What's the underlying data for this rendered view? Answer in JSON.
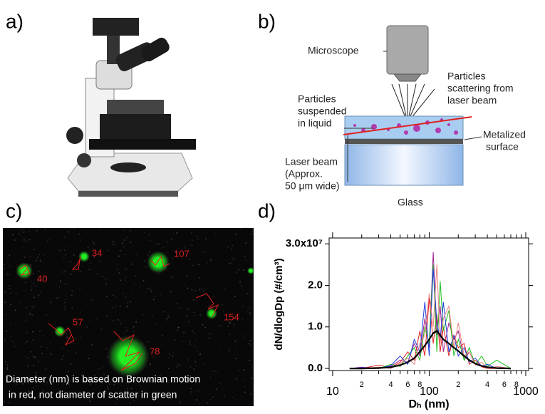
{
  "panels": {
    "a": "a)",
    "b": "b)",
    "c": "c)",
    "d": "d)"
  },
  "diagram": {
    "microscope": "Microscope",
    "scattering": [
      "Particles",
      "scattering from",
      "laser beam"
    ],
    "suspended": [
      "Particles",
      "suspended",
      "in liquid"
    ],
    "metal": [
      "Metalized",
      "surface"
    ],
    "laser": [
      "Laser beam",
      "(Approx.",
      "50 μm wide)"
    ],
    "glass": "Glass"
  },
  "image": {
    "labels": [
      "34",
      "107",
      "40",
      "154",
      "57",
      "78"
    ],
    "caption": [
      "Diameter (nm) is based on Brownian motion",
      " in red, not diameter of scatter in green"
    ]
  },
  "chart_data": {
    "type": "line",
    "xlabel": "Dₕ (nm)",
    "ylabel": "dN/dlogDp (#/cm³)",
    "log_x": true,
    "xlim": [
      9.2,
      1070
    ],
    "ylim": [
      -500000,
      31400000
    ],
    "xticks": [
      10,
      {
        "value": 20,
        "label": "2"
      },
      {
        "value": 40,
        "label": "4"
      },
      {
        "value": 60,
        "label": "6"
      },
      {
        "value": 80,
        "label": "8"
      },
      100,
      {
        "value": 200,
        "label": "2"
      },
      {
        "value": 400,
        "label": "4"
      },
      {
        "value": 600,
        "label": "6"
      },
      {
        "value": 800,
        "label": "8"
      },
      1000
    ],
    "xminorticks": [
      30,
      50,
      70,
      90,
      300,
      500,
      700,
      900
    ],
    "yticks": [
      {
        "value": 0,
        "label": "0.0"
      },
      {
        "value": 10000000,
        "label": "1.0"
      },
      {
        "value": 20000000,
        "label": "2.0"
      },
      {
        "value": 30000000,
        "label": "3.0x10⁷"
      }
    ],
    "x": [
      15,
      20,
      30,
      40,
      50,
      60,
      70,
      80,
      90,
      100,
      110,
      120,
      130,
      140,
      160,
      180,
      200,
      230,
      260,
      300,
      350,
      400,
      500,
      700
    ],
    "series": [
      {
        "color": "#a0208e",
        "values": [
          0,
          300000,
          0,
          500000,
          2000000,
          1500000,
          6000000,
          3000000,
          12000000,
          5000000,
          28000000,
          8000000,
          15000000,
          4000000,
          11000000,
          7000000,
          9000000,
          2000000,
          4000000,
          1000000,
          500000,
          1000000,
          0,
          0
        ]
      },
      {
        "color": "#e02020",
        "values": [
          0,
          0,
          800000,
          200000,
          1500000,
          4000000,
          2000000,
          9000000,
          3000000,
          17000000,
          6000000,
          13000000,
          4000000,
          10000000,
          3000000,
          8000000,
          5000000,
          6000000,
          1000000,
          2000000,
          400000,
          0,
          0,
          0
        ]
      },
      {
        "color": "#20c020",
        "values": [
          0,
          0,
          0,
          1000000,
          500000,
          3000000,
          5000000,
          2000000,
          10000000,
          6000000,
          25000000,
          4000000,
          21000000,
          9000000,
          14000000,
          3000000,
          7000000,
          2000000,
          5000000,
          1000000,
          3000000,
          500000,
          2000000,
          0
        ]
      },
      {
        "color": "#2040e0",
        "values": [
          0,
          200000,
          0,
          700000,
          3000000,
          1000000,
          7000000,
          4000000,
          16000000,
          3000000,
          24000000,
          11000000,
          7000000,
          16000000,
          4000000,
          8000000,
          3000000,
          5000000,
          1500000,
          2500000,
          500000,
          1000000,
          0,
          0
        ]
      },
      {
        "color": "#f08080",
        "values": [
          0,
          0,
          300000,
          0,
          1200000,
          2500000,
          1000000,
          6000000,
          8000000,
          18000000,
          10000000,
          25000000,
          6000000,
          12000000,
          15000000,
          5000000,
          11000000,
          3000000,
          4000000,
          800000,
          1500000,
          0,
          500000,
          0
        ]
      },
      {
        "color": "#000000",
        "values": [
          0,
          0,
          100000,
          300000,
          800000,
          1500000,
          2500000,
          4000000,
          5500000,
          7000000,
          8500000,
          9000000,
          8000000,
          7000000,
          6000000,
          5000000,
          4200000,
          3000000,
          2000000,
          1200000,
          600000,
          300000,
          100000,
          0
        ]
      }
    ]
  }
}
